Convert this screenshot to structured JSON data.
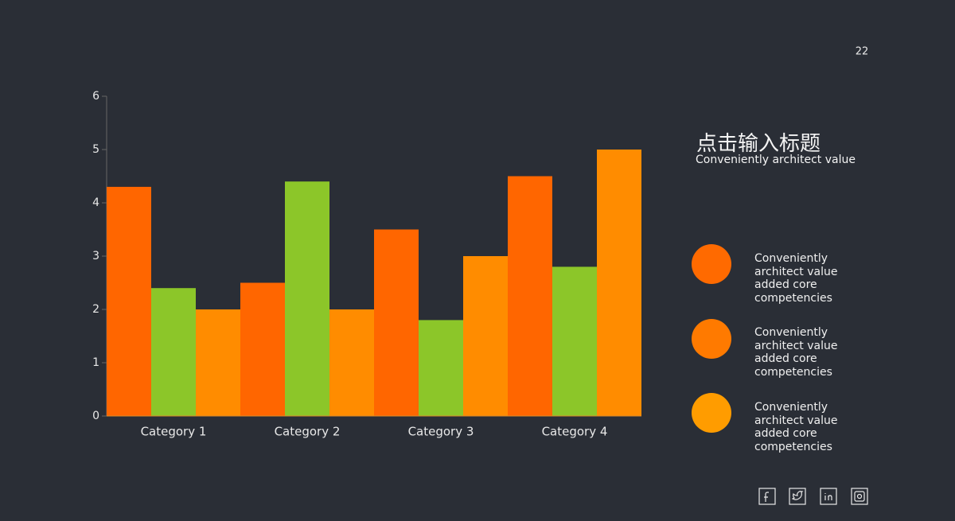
{
  "page_number": "22",
  "side": {
    "title": "点击输入标题",
    "subtitle": "Conveniently architect value",
    "items": [
      "Conveniently architect value added core competencies",
      "Conveniently architect value added core competencies",
      "Conveniently architect value added core competencies"
    ]
  },
  "chart_data": {
    "type": "bar",
    "categories": [
      "Category 1",
      "Category 2",
      "Category 3",
      "Category 4"
    ],
    "series": [
      {
        "color": "#ff6600",
        "values": [
          4.3,
          2.5,
          3.5,
          4.5
        ]
      },
      {
        "color": "#8cc629",
        "values": [
          2.4,
          4.4,
          1.8,
          2.8
        ]
      },
      {
        "color": "#ff8c00",
        "values": [
          2.0,
          2.0,
          3.0,
          5.0
        ]
      }
    ],
    "ylim": [
      0,
      6
    ],
    "yticks": [
      0,
      1,
      2,
      3,
      4,
      5,
      6
    ],
    "grid": false
  }
}
